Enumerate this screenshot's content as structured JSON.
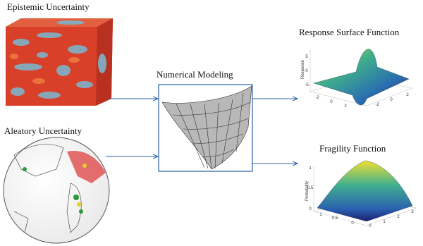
{
  "epistemic": {
    "title": "Epistemic Uncertainty"
  },
  "aleatory": {
    "title": "Aleatory Uncertainty"
  },
  "model": {
    "title": "Numerical Modeling"
  },
  "response": {
    "title": "Response Surface Function",
    "z_label": "Response",
    "z_ticks": [
      "5",
      "0",
      "-5"
    ],
    "x_ticks": [
      "-2",
      "0",
      "2"
    ],
    "y_ticks": [
      "-2",
      "0",
      "2"
    ]
  },
  "fragility": {
    "title": "Fragility Function",
    "z_label": "Probability",
    "z_ticks": [
      "1",
      "0.5",
      "0"
    ],
    "x_ticks": [
      "1",
      "0.5",
      "0"
    ],
    "y_ticks": [
      "0",
      "1",
      "2",
      "3"
    ]
  }
}
